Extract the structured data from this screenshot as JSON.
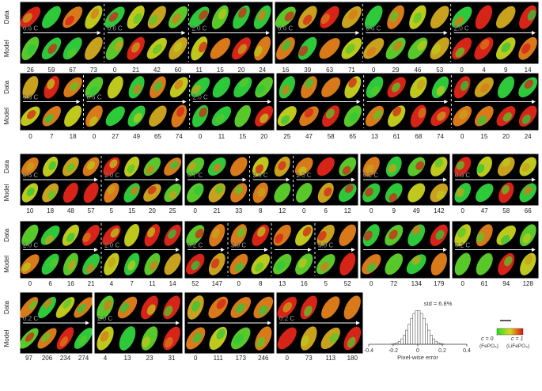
{
  "labels": {
    "data": "Data",
    "model": "Model"
  },
  "rows": [
    {
      "panels": [
        {
          "groups": [
            {
              "rate": "0.6 C",
              "times": [
                "26",
                "59",
                "67",
                "73"
              ]
            },
            {
              "rate": "0.6 C",
              "times": [
                "0",
                "21",
                "42",
                "60"
              ]
            },
            {
              "rate": "2.0 C",
              "times": [
                "11",
                "15",
                "20",
                "24"
              ]
            }
          ]
        },
        {
          "groups": [
            {
              "rate": "0.6 C",
              "times": [
                "16",
                "39",
                "63",
                "71"
              ]
            },
            {
              "rate": "0.6 C",
              "times": [
                "0",
                "29",
                "46",
                "53"
              ]
            },
            {
              "rate": "2.0 C",
              "times": [
                "0",
                "4",
                "9",
                "14"
              ]
            }
          ]
        }
      ]
    },
    {
      "panels": [
        {
          "groups": [
            {
              "rate": "0.6 C",
              "times": [
                "0",
                "7",
                "18"
              ]
            },
            {
              "rate": "0.6 C",
              "times": [
                "0",
                "27",
                "49",
                "65",
                "74"
              ]
            },
            {
              "rate": "2.0 C",
              "times": [
                "0",
                "11",
                "15",
                "20"
              ]
            }
          ]
        },
        {
          "groups": [
            {
              "rate": "",
              "times": [
                "25",
                "47",
                "58",
                "65"
              ]
            },
            {
              "rate": "",
              "times": [
                "13",
                "61",
                "68",
                "74"
              ]
            },
            {
              "rate": "",
              "times": [
                "0",
                "15",
                "20",
                "24"
              ]
            }
          ]
        }
      ]
    },
    {
      "panels": [
        {
          "groups": [
            {
              "rate": "0.6 C",
              "times": [
                "10",
                "18",
                "48",
                "57"
              ]
            },
            {
              "rate": "2.0 C",
              "times": [
                "5",
                "15",
                "20",
                "25"
              ]
            }
          ]
        },
        {
          "groups": [
            {
              "rate": "0.7 C",
              "times": [
                "0",
                "21",
                "33"
              ]
            },
            {
              "rate": "2.0 C",
              "times": [
                "8",
                "12"
              ]
            },
            {
              "rate": "2.0 C",
              "times": [
                "0",
                "6",
                "12"
              ]
            }
          ]
        },
        {
          "groups": [
            {
              "rate": "0.2 C",
              "times": [
                "0",
                "9",
                "49",
                "142"
              ]
            }
          ]
        },
        {
          "groups": [
            {
              "rate": "0.6 C",
              "times": [
                "0",
                "47",
                "58",
                "66"
              ]
            }
          ]
        }
      ]
    },
    {
      "panels": [
        {
          "groups": [
            {
              "rate": "2.0 C",
              "times": [
                "0",
                "6",
                "16",
                "21"
              ]
            },
            {
              "rate": "2.0 C",
              "times": [
                "4",
                "7",
                "11",
                "14"
              ]
            }
          ]
        },
        {
          "groups": [
            {
              "rate": "0.2 C",
              "times": [
                "52",
                "147"
              ]
            },
            {
              "rate": "3.0 C",
              "times": [
                "0",
                "8"
              ]
            },
            {
              "rate": "",
              "times": [
                "13",
                "16"
              ]
            },
            {
              "rate": "3.0 C",
              "times": [
                "5",
                "52"
              ]
            }
          ]
        },
        {
          "groups": [
            {
              "rate": "",
              "times": [
                "0",
                "72",
                "134",
                "179"
              ]
            }
          ]
        },
        {
          "groups": [
            {
              "rate": "0.2 C",
              "times": [
                "0",
                "61",
                "94",
                "128"
              ]
            }
          ]
        }
      ]
    },
    {
      "panels": [
        {
          "groups": [
            {
              "rate": "0.2 C",
              "times": [
                "97",
                "206",
                "234",
                "274"
              ]
            }
          ]
        },
        {
          "groups": [
            {
              "rate": "2.0 C",
              "times": [
                "4",
                "13",
                "23",
                "31"
              ]
            }
          ]
        },
        {
          "groups": [
            {
              "rate": "",
              "times": [
                "0",
                "111",
                "173",
                "246"
              ]
            }
          ]
        },
        {
          "groups": [
            {
              "rate": "0.2 C",
              "times": [
                "0",
                "73",
                "113",
                "180"
              ]
            }
          ]
        }
      ]
    }
  ],
  "histogram": {
    "std_label": "std = 6.8%",
    "xlabel": "Pixel-wise error",
    "ticks": [
      "-0.4",
      "-0.2",
      "0",
      "0.2",
      "0.4"
    ],
    "xlim": [
      -0.4,
      0.4
    ],
    "sigma": 0.068
  },
  "colorbar": {
    "left": "c = 0",
    "left_sub": "(FePO₄)",
    "right": "c = 1",
    "right_sub": "(LiFePO₄)",
    "colors": [
      "#22dd22",
      "#d8d820",
      "#dd1111"
    ]
  }
}
